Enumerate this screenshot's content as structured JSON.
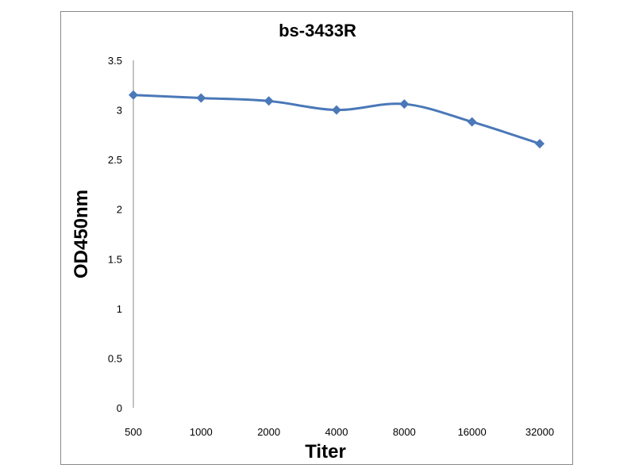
{
  "chart_data": {
    "type": "line",
    "title": "bs-3433R",
    "xlabel": "Titer",
    "ylabel": "OD450nm",
    "categories": [
      "500",
      "1000",
      "2000",
      "4000",
      "8000",
      "16000",
      "32000"
    ],
    "series": [
      {
        "name": "bs-3433R",
        "values": [
          3.15,
          3.12,
          3.09,
          3.0,
          3.06,
          2.88,
          2.66
        ],
        "color": "#4a78b8"
      }
    ],
    "ylim": [
      0,
      3.5
    ],
    "yticks": [
      "0",
      "0.5",
      "1",
      "1.5",
      "2",
      "2.5",
      "3",
      "3.5"
    ],
    "grid": false,
    "legend": "none"
  }
}
